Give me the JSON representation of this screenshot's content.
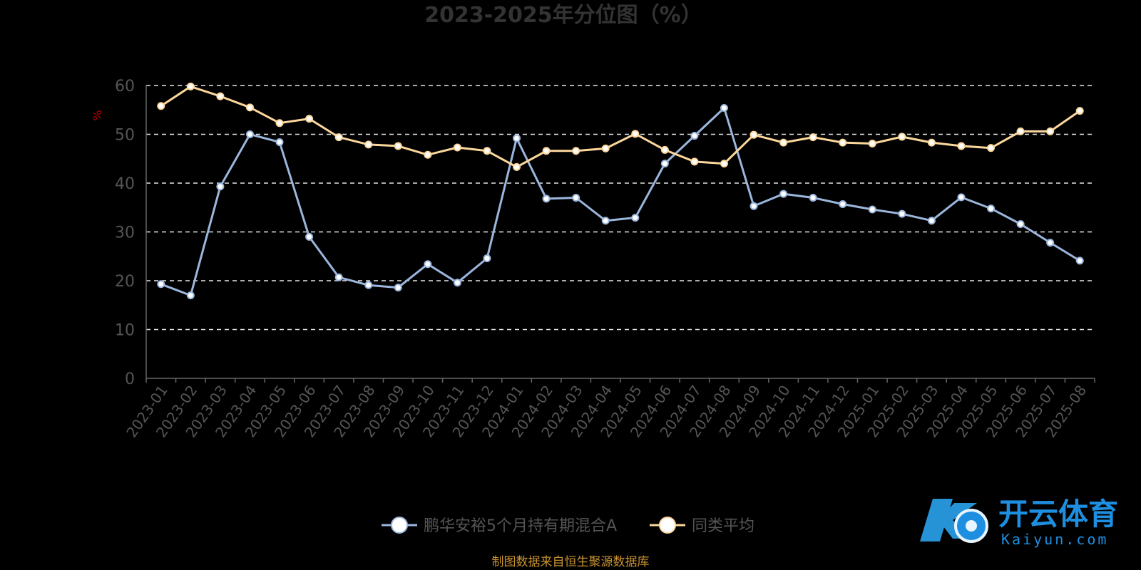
{
  "chart_data": {
    "type": "line",
    "title": "2023-2025年分位图（%）",
    "ylabel": "%",
    "ylim": [
      0,
      60
    ],
    "yticks": [
      0,
      10,
      20,
      30,
      40,
      50,
      60
    ],
    "grid": true,
    "legend_position": "bottom-center",
    "categories": [
      "2023-01",
      "2023-02",
      "2023-03",
      "2023-04",
      "2023-05",
      "2023-06",
      "2023-07",
      "2023-08",
      "2023-09",
      "2023-10",
      "2023-11",
      "2023-12",
      "2024-01",
      "2024-02",
      "2024-03",
      "2024-04",
      "2024-05",
      "2024-06",
      "2024-07",
      "2024-08",
      "2024-09",
      "2024-10",
      "2024-11",
      "2024-12",
      "2025-01",
      "2025-02",
      "2025-03",
      "2025-04",
      "2025-05",
      "2025-06",
      "2025-07",
      "2025-08"
    ],
    "series": [
      {
        "name": "鹏华安裕5个月持有期混合A",
        "color": "#9bb6dd",
        "values": [
          19.3,
          17.0,
          39.3,
          50.0,
          48.4,
          29.0,
          20.7,
          19.1,
          18.6,
          23.4,
          19.6,
          24.6,
          49.2,
          36.8,
          37.0,
          32.3,
          32.9,
          44.0,
          49.7,
          55.4,
          35.3,
          37.8,
          37.0,
          35.7,
          34.6,
          33.7,
          32.3,
          37.1,
          34.8,
          31.6,
          27.8,
          24.1
        ]
      },
      {
        "name": "同类平均",
        "color": "#fcd79c",
        "values": [
          55.8,
          59.8,
          57.8,
          55.5,
          52.3,
          53.2,
          49.4,
          47.9,
          47.6,
          45.8,
          47.3,
          46.6,
          43.3,
          46.6,
          46.6,
          47.1,
          50.1,
          46.8,
          44.4,
          44.0,
          49.9,
          48.3,
          49.4,
          48.3,
          48.1,
          49.5,
          48.3,
          47.6,
          47.2,
          50.6,
          50.6,
          54.8
        ]
      }
    ],
    "source": "制图数据来自恒生聚源数据库"
  },
  "watermark": {
    "cn": "开云体育",
    "en": "Kaiyun.com"
  }
}
